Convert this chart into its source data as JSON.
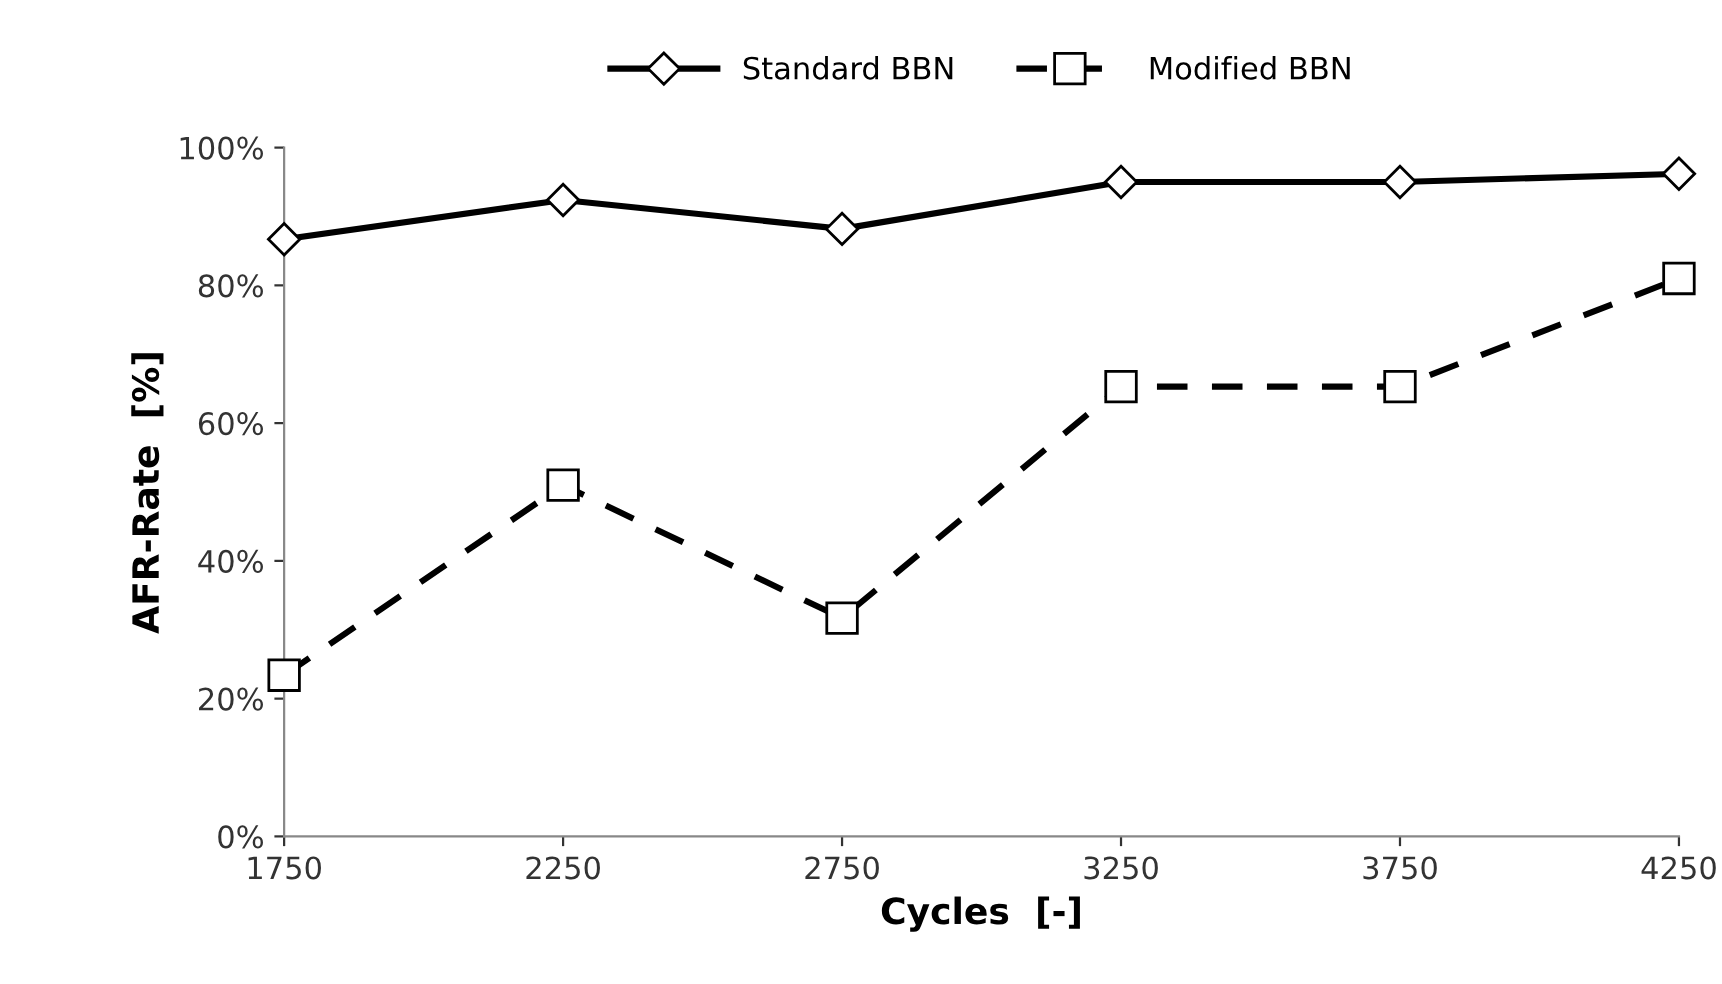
{
  "chart_data": {
    "type": "line",
    "xlabel": "Cycles  [-]",
    "ylabel": "AFR-Rate  [%]",
    "x": [
      1750,
      2250,
      2750,
      3250,
      3750,
      4250
    ],
    "series": [
      {
        "name": "Standard BBN",
        "color": "#000000",
        "marker": "diamond",
        "line_style": "solid",
        "values": [
          86.7,
          92.4,
          88.2,
          95,
          95,
          96.2
        ]
      },
      {
        "name": "Modified BBN",
        "color": "#000000",
        "marker": "square",
        "line_style": "dashed",
        "values": [
          23.4,
          51,
          31.7,
          65.3,
          65.3,
          81
        ]
      }
    ],
    "xlim": [
      1750,
      4250
    ],
    "xticks": [
      1750,
      2250,
      2750,
      3250,
      3750,
      4250
    ],
    "ylim": [
      0,
      100
    ],
    "yticks": [
      {
        "value": 0,
        "label": "0%"
      },
      {
        "value": 20,
        "label": "20%"
      },
      {
        "value": 40,
        "label": "40%"
      },
      {
        "value": 60,
        "label": "60%"
      },
      {
        "value": 80,
        "label": "80%"
      },
      {
        "value": 100,
        "label": "100%"
      }
    ],
    "grid": false,
    "legend": "top"
  }
}
